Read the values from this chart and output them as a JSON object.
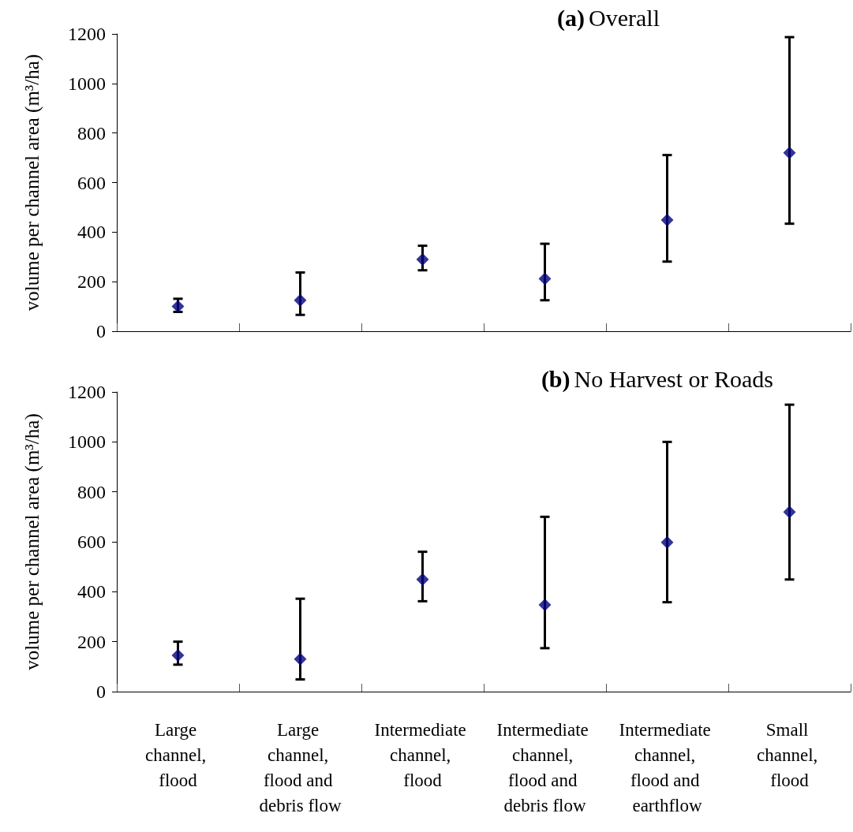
{
  "chart_data": [
    {
      "type": "scatter",
      "title": "(a) Overall",
      "ylabel": "volume per channel area (m³/ha)",
      "categories": [
        "Large channel, flood",
        "Large channel, flood and debris flow",
        "Intermediate channel, flood",
        "Intermediate channel, flood and debris flow",
        "Intermediate channel, flood and earthflow",
        "Small channel, flood"
      ],
      "values": [
        100,
        125,
        290,
        212,
        449,
        720
      ],
      "errors": [
        [
          78,
          131
        ],
        [
          66,
          237
        ],
        [
          246,
          345
        ],
        [
          125,
          353
        ],
        [
          281,
          711
        ],
        [
          434,
          1187
        ]
      ],
      "color": "#000080",
      "marker": "diamond",
      "ylim": [
        0,
        1200
      ],
      "yticks": [
        0,
        200,
        400,
        600,
        800,
        1000,
        1200
      ],
      "grid": false,
      "tick_labels": "y"
    },
    {
      "type": "scatter",
      "title": "(b) No Harvest or Roads",
      "ylabel": "volume per channel area (m³/ha)",
      "categories": [
        "Large channel, flood",
        "Large channel, flood and debris flow",
        "Intermediate channel, flood",
        "Intermediate channel, flood and debris flow",
        "Intermediate channel, flood and earthflow",
        "Small channel, flood"
      ],
      "values": [
        145,
        130,
        449,
        347,
        598,
        719
      ],
      "errors": [
        [
          108,
          200
        ],
        [
          49,
          372
        ],
        [
          362,
          560
        ],
        [
          174,
          700
        ],
        [
          358,
          1000
        ],
        [
          449,
          1149
        ]
      ],
      "color": "#000080",
      "marker": "diamond",
      "ylim": [
        0,
        1200
      ],
      "yticks": [
        0,
        200,
        400,
        600,
        800,
        1000,
        1200
      ],
      "grid": false
    }
  ]
}
